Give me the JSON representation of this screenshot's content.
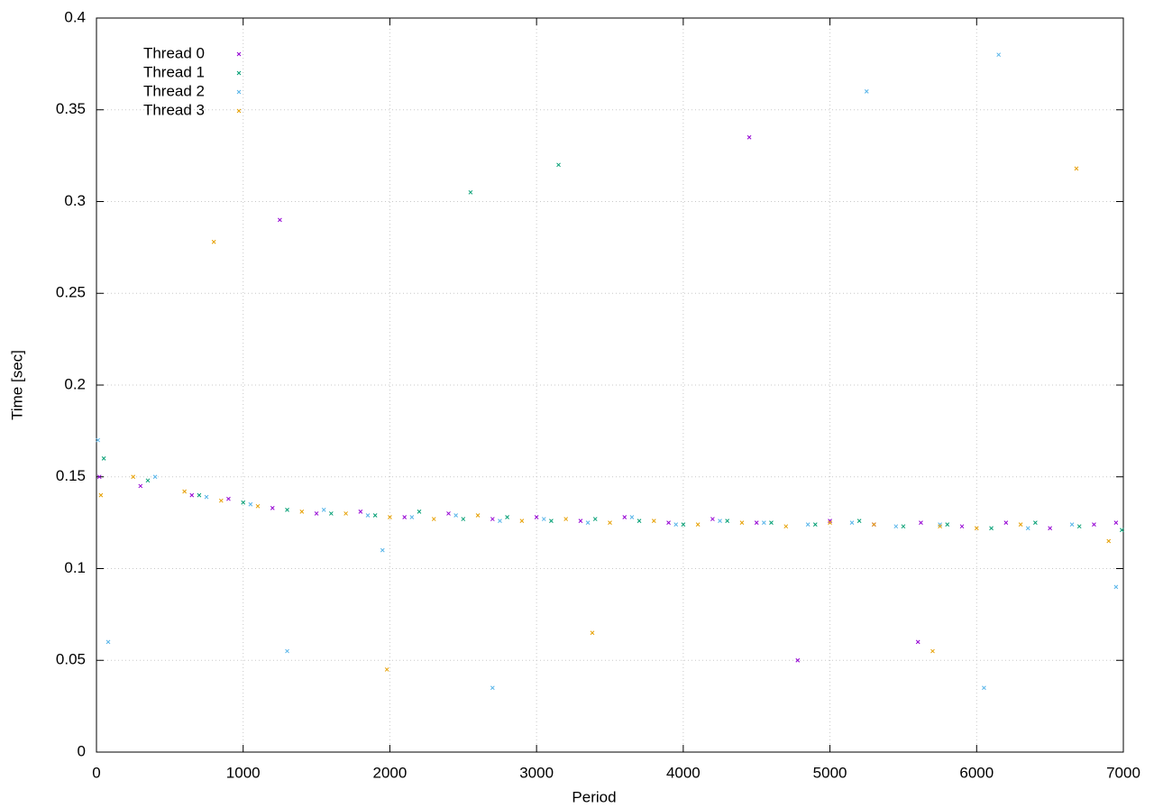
{
  "chart_data": {
    "type": "scatter",
    "xlabel": "Period",
    "ylabel": "Time [sec]",
    "xlim": [
      0,
      7000
    ],
    "ylim": [
      0,
      0.4
    ],
    "xticks": [
      0,
      1000,
      2000,
      3000,
      4000,
      5000,
      6000,
      7000
    ],
    "yticks": [
      0,
      0.05,
      0.1,
      0.15,
      0.2,
      0.25,
      0.3,
      0.35,
      0.4
    ],
    "grid": true,
    "legend": "top-left",
    "series": [
      {
        "name": "Thread 0",
        "color": "#9400d3",
        "x": [
          20,
          300,
          650,
          900,
          1200,
          1500,
          1800,
          2100,
          2400,
          2700,
          3000,
          3300,
          3600,
          3900,
          4200,
          4500,
          4780,
          5000,
          5300,
          5600,
          5620,
          5900,
          6200,
          6500,
          6800,
          6950,
          4450,
          1250
        ],
        "values": [
          0.15,
          0.145,
          0.14,
          0.138,
          0.133,
          0.13,
          0.131,
          0.128,
          0.13,
          0.127,
          0.128,
          0.126,
          0.128,
          0.125,
          0.127,
          0.125,
          0.05,
          0.126,
          0.124,
          0.06,
          0.125,
          0.123,
          0.125,
          0.122,
          0.124,
          0.125,
          0.335,
          0.29
        ]
      },
      {
        "name": "Thread 1",
        "color": "#009e73",
        "x": [
          50,
          350,
          700,
          1000,
          1300,
          1600,
          1900,
          2200,
          2500,
          2800,
          3100,
          3400,
          3700,
          4000,
          4300,
          4600,
          4900,
          5200,
          5500,
          5800,
          6100,
          6400,
          6700,
          6990,
          2550,
          3150
        ],
        "values": [
          0.16,
          0.148,
          0.14,
          0.136,
          0.132,
          0.13,
          0.129,
          0.131,
          0.127,
          0.128,
          0.126,
          0.127,
          0.126,
          0.124,
          0.126,
          0.125,
          0.124,
          0.126,
          0.123,
          0.124,
          0.122,
          0.125,
          0.123,
          0.121,
          0.305,
          0.32
        ]
      },
      {
        "name": "Thread 2",
        "color": "#56b4e9",
        "x": [
          10,
          80,
          400,
          750,
          1050,
          1300,
          1550,
          1850,
          1950,
          2150,
          2450,
          2700,
          2750,
          3050,
          3350,
          3650,
          3950,
          4250,
          4550,
          4850,
          5150,
          5450,
          5750,
          6050,
          6350,
          6650,
          6950,
          6150,
          5250
        ],
        "values": [
          0.17,
          0.06,
          0.15,
          0.139,
          0.135,
          0.055,
          0.132,
          0.129,
          0.11,
          0.128,
          0.129,
          0.035,
          0.126,
          0.127,
          0.125,
          0.128,
          0.124,
          0.126,
          0.125,
          0.124,
          0.125,
          0.123,
          0.124,
          0.035,
          0.122,
          0.124,
          0.09,
          0.38,
          0.36
        ]
      },
      {
        "name": "Thread 3",
        "color": "#e69f00",
        "x": [
          30,
          250,
          600,
          850,
          1100,
          1400,
          1700,
          1980,
          2000,
          2300,
          2600,
          2900,
          3200,
          3380,
          3500,
          3800,
          4100,
          4400,
          4700,
          5000,
          5300,
          5700,
          5750,
          6000,
          6300,
          6680,
          6900,
          800
        ],
        "values": [
          0.14,
          0.15,
          0.142,
          0.137,
          0.134,
          0.131,
          0.13,
          0.045,
          0.128,
          0.127,
          0.129,
          0.126,
          0.127,
          0.065,
          0.125,
          0.126,
          0.124,
          0.125,
          0.123,
          0.125,
          0.124,
          0.055,
          0.123,
          0.122,
          0.124,
          0.318,
          0.115,
          0.278
        ]
      }
    ]
  }
}
